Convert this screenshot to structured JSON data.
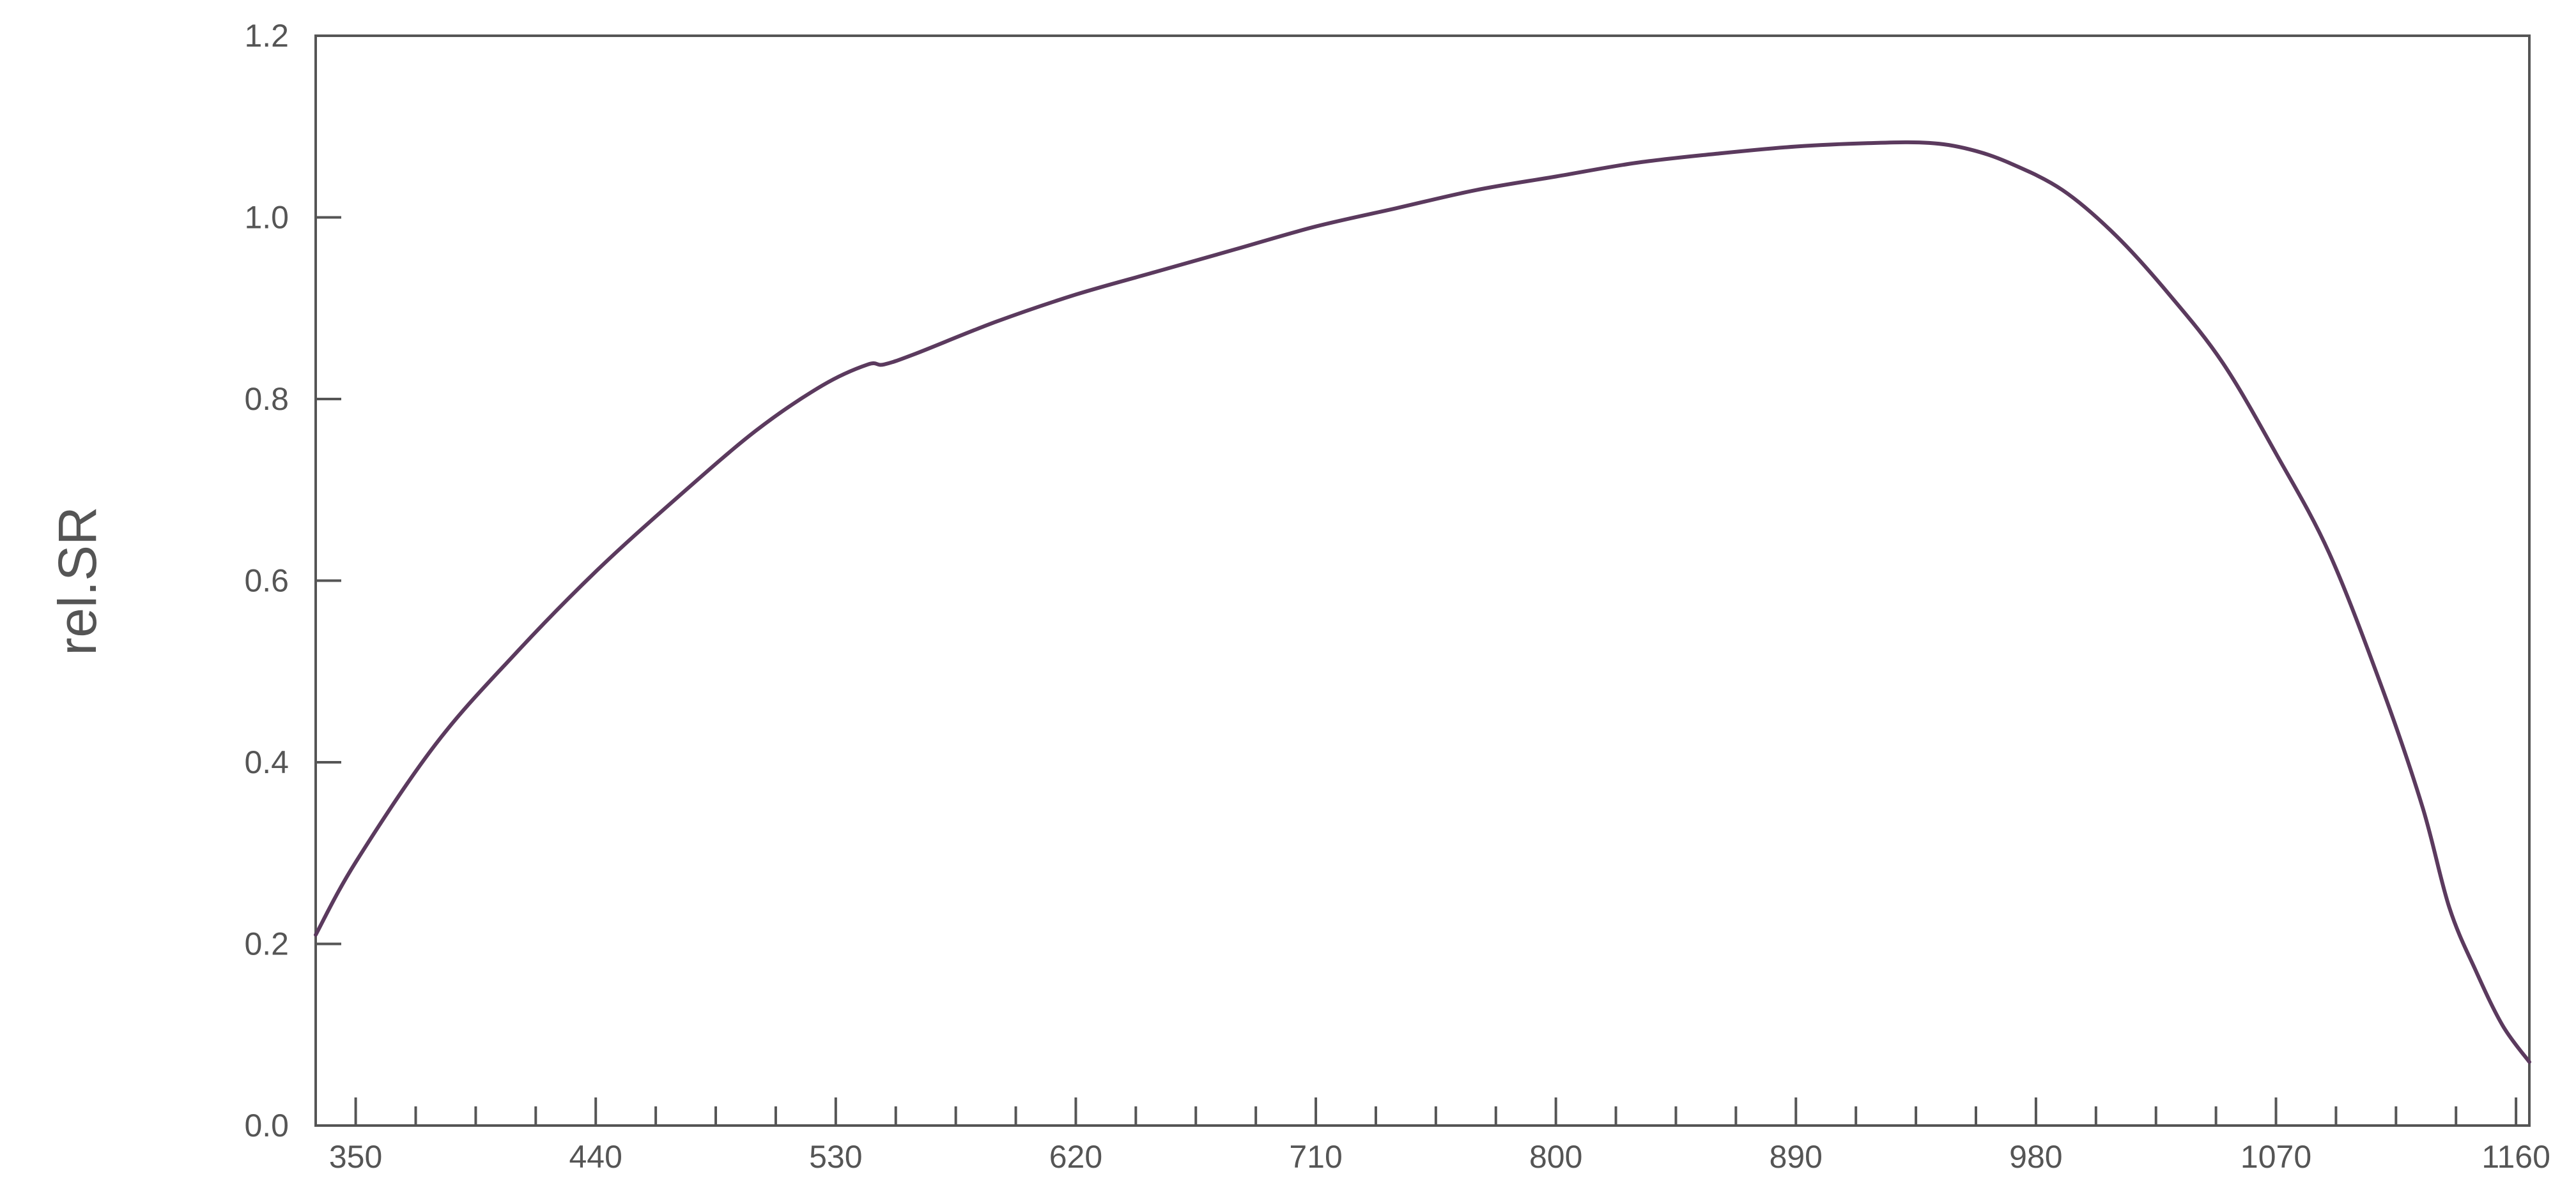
{
  "chart_data": {
    "type": "line",
    "title": "",
    "xlabel": "",
    "ylabel": "rel.SR",
    "xlim": [
      335,
      1165
    ],
    "ylim": [
      0,
      1.2
    ],
    "x_ticks": [
      350,
      440,
      530,
      620,
      710,
      800,
      890,
      980,
      1070,
      1160
    ],
    "x_tick_labels": [
      "350",
      "440",
      "530",
      "620",
      "710",
      "800",
      "890",
      "980",
      "1070",
      "1160"
    ],
    "x_minor_step": 22.5,
    "y_ticks": [
      0.0,
      0.2,
      0.4,
      0.6,
      0.8,
      1.0,
      1.2
    ],
    "y_tick_labels": [
      "0.0",
      "0.2",
      "0.4",
      "0.6",
      "0.8",
      "1.0",
      "1.2"
    ],
    "grid": false,
    "line_color": "#5b3a5e",
    "axis_color": "#555555",
    "series": [
      {
        "x": [
          335,
          350,
          380,
          410,
          440,
          470,
          500,
          525,
          542,
          548,
          560,
          590,
          620,
          650,
          680,
          710,
          740,
          770,
          800,
          830,
          860,
          890,
          920,
          940,
          955,
          970,
          990,
          1010,
          1030,
          1050,
          1070,
          1090,
          1110,
          1125,
          1135,
          1145,
          1155,
          1165
        ],
        "y": [
          0.21,
          0.29,
          0.42,
          0.52,
          0.61,
          0.69,
          0.765,
          0.815,
          0.838,
          0.838,
          0.85,
          0.885,
          0.915,
          0.94,
          0.965,
          0.99,
          1.01,
          1.03,
          1.045,
          1.06,
          1.07,
          1.078,
          1.082,
          1.082,
          1.075,
          1.06,
          1.03,
          0.98,
          0.915,
          0.84,
          0.74,
          0.63,
          0.48,
          0.35,
          0.24,
          0.17,
          0.11,
          0.07
        ]
      }
    ]
  }
}
